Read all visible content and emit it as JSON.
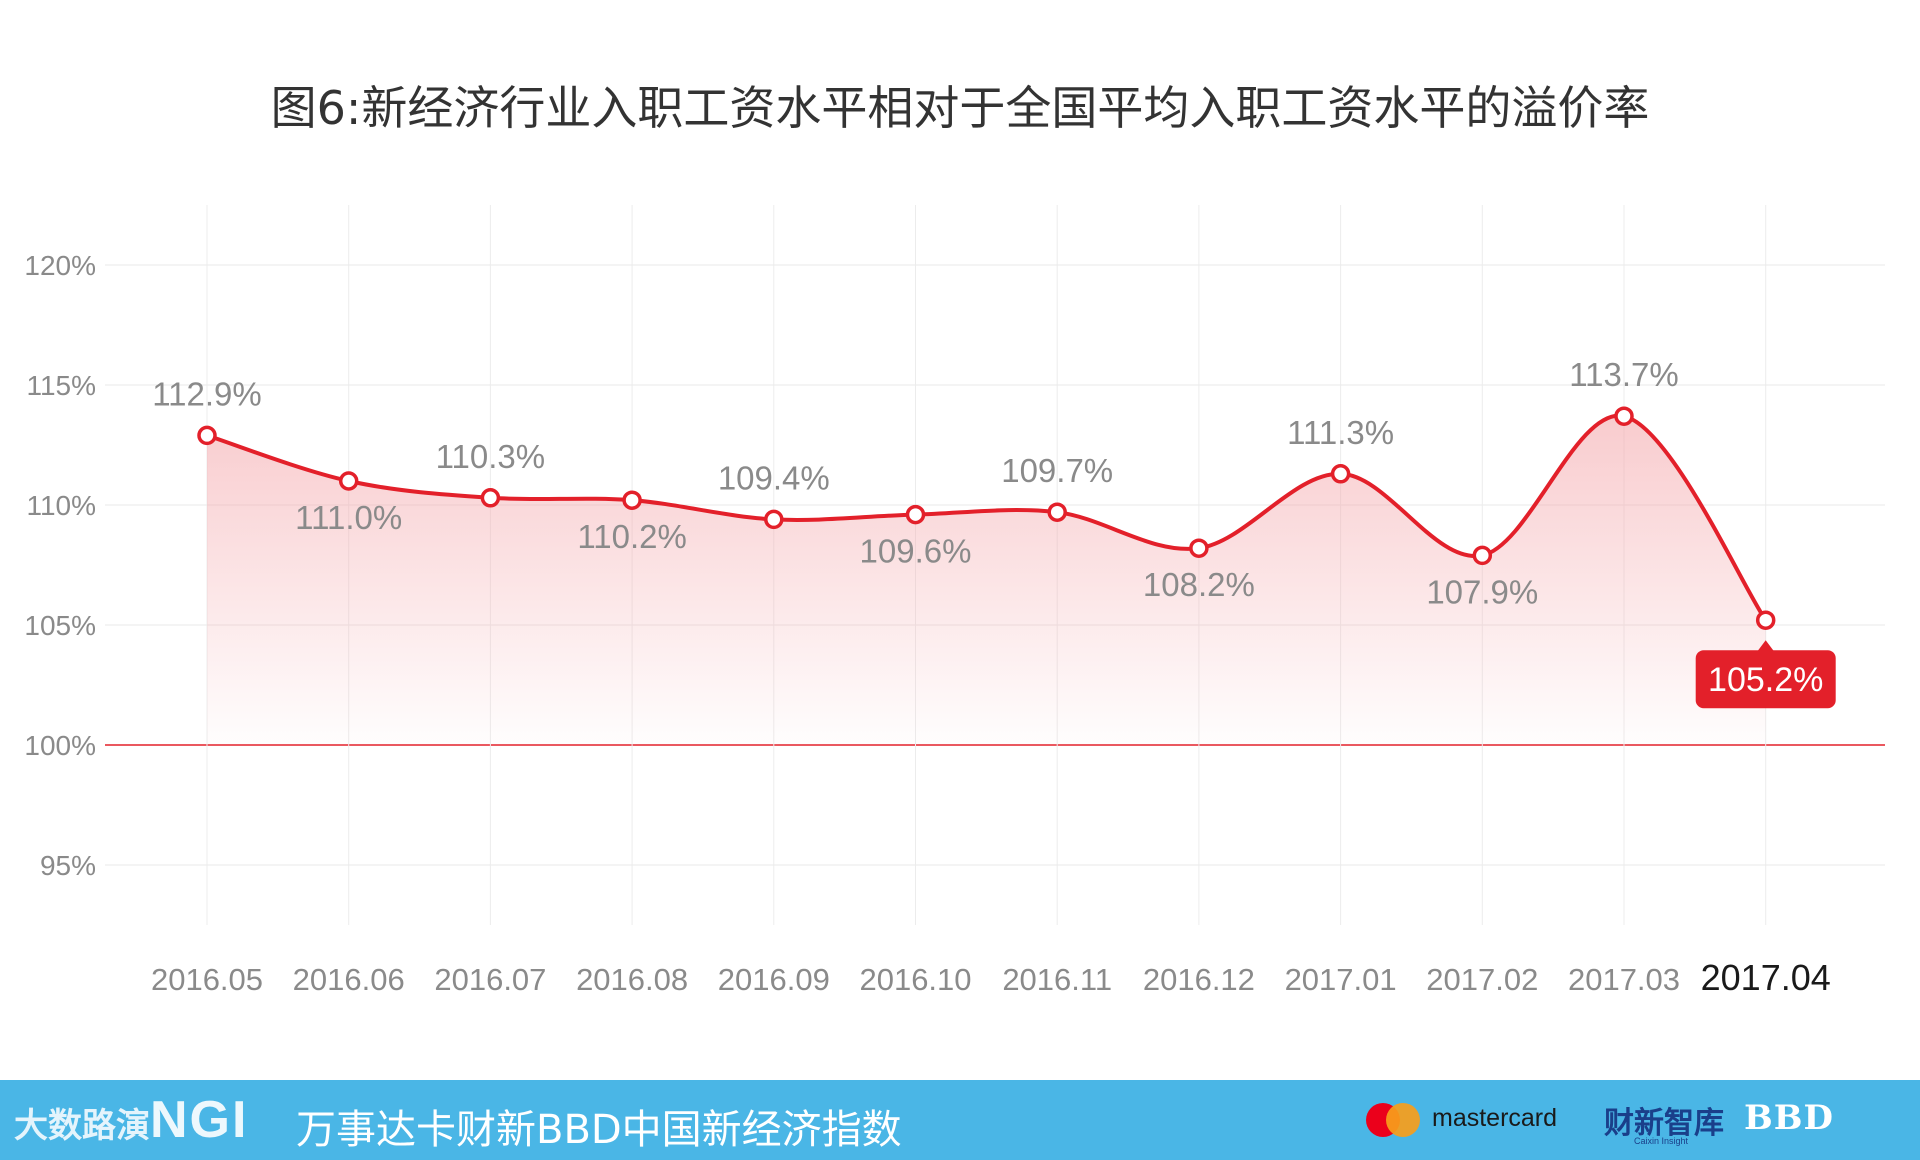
{
  "chart_data": {
    "type": "line",
    "title": "图6:新经济行业入职工资水平相对于全国平均入职工资水平的溢价率",
    "categories": [
      "2016.05",
      "2016.06",
      "2016.07",
      "2016.08",
      "2016.09",
      "2016.10",
      "2016.11",
      "2016.12",
      "2017.01",
      "2017.02",
      "2017.03",
      "2017.04"
    ],
    "values": [
      112.9,
      111.0,
      110.3,
      110.2,
      109.4,
      109.6,
      109.7,
      108.2,
      111.3,
      107.9,
      113.7,
      105.2
    ],
    "data_labels": [
      "112.9%",
      "111.0%",
      "110.3%",
      "110.2%",
      "109.4%",
      "109.6%",
      "109.7%",
      "108.2%",
      "111.3%",
      "107.9%",
      "113.7%",
      "105.2%"
    ],
    "y_ticks": [
      95,
      100,
      105,
      110,
      115,
      120
    ],
    "y_tick_labels": [
      "95%",
      "100%",
      "105%",
      "110%",
      "115%",
      "120%"
    ],
    "ylim": [
      92.5,
      122.5
    ],
    "reference_line": 100,
    "highlight_index": 11,
    "grid": true,
    "line_color": "#e3202a",
    "area_color": "#f4a9ad"
  },
  "footer": {
    "left_logo": "大数路演",
    "ngi_logo": "NGI",
    "title": "万事达卡财新BBD中国新经济指数",
    "mastercard_text": "mastercard",
    "caixin_logo": "财新智库",
    "caixin_sub": "Caixin Insight",
    "bbd_logo": "BBD",
    "bar_color": "#4ab6e6"
  }
}
